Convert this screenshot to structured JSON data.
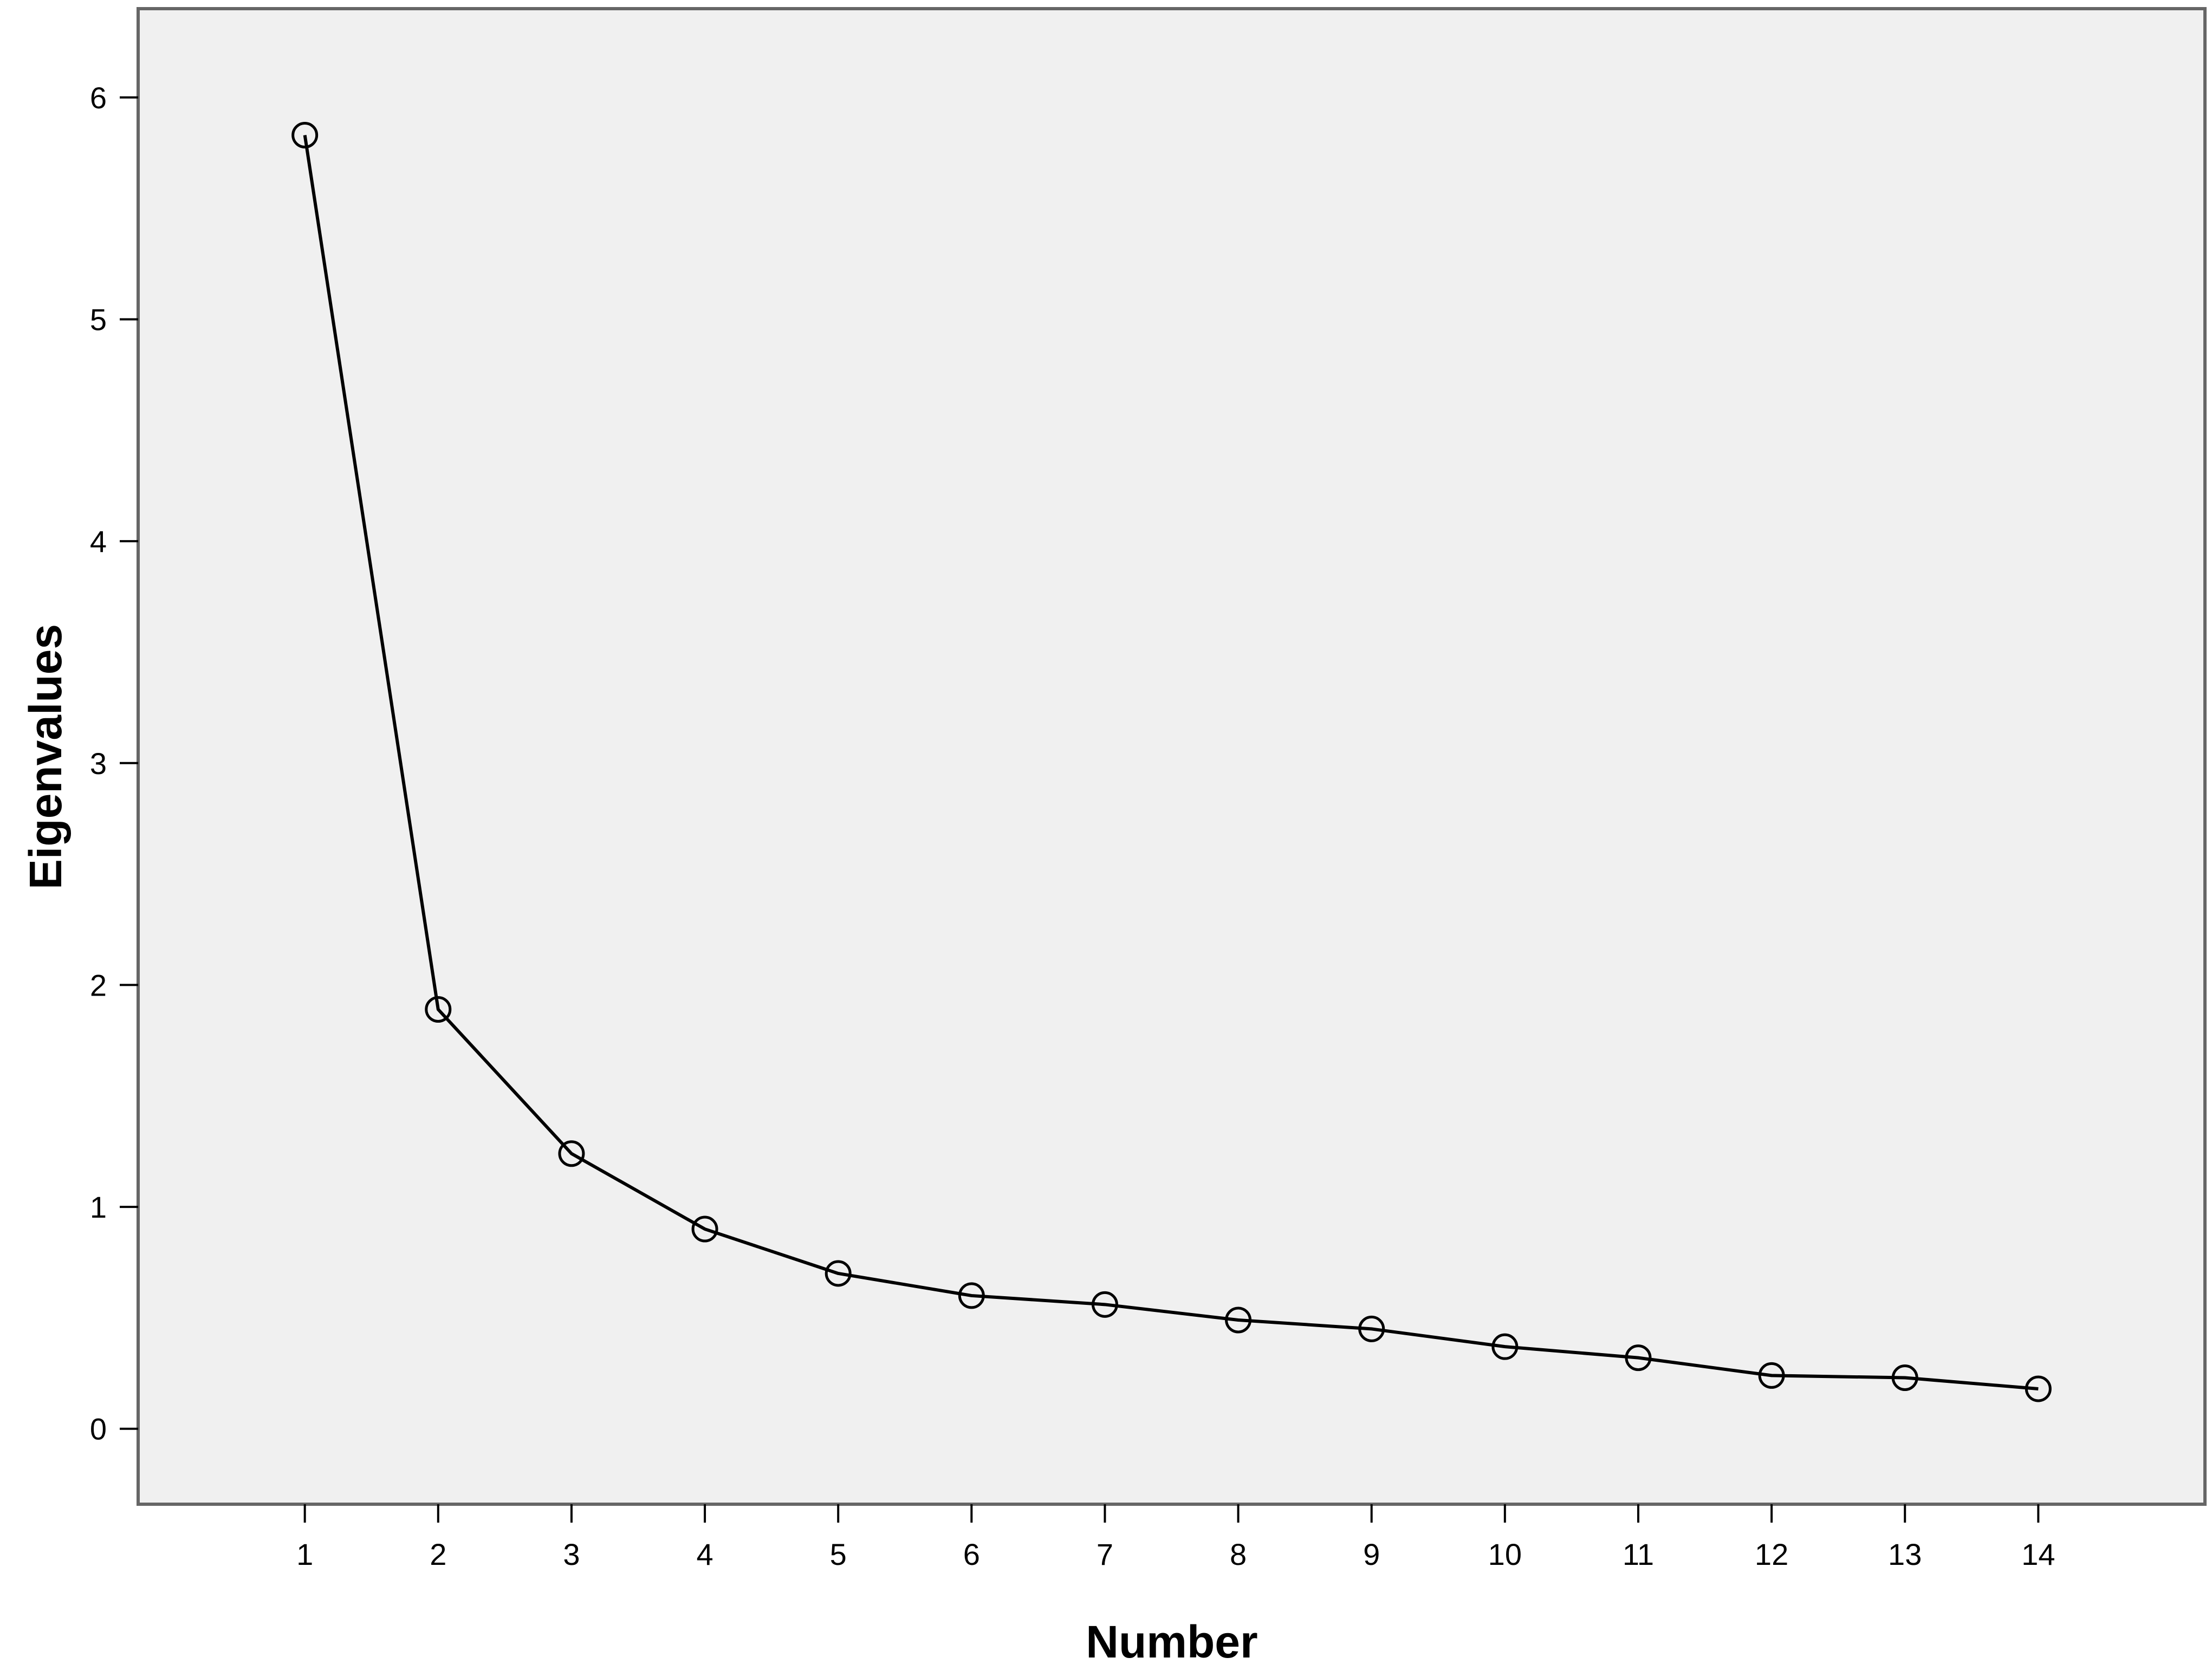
{
  "chart_data": {
    "type": "line",
    "xlabel": "Number",
    "ylabel": "Eigenvalues",
    "x": [
      1,
      2,
      3,
      4,
      5,
      6,
      7,
      8,
      9,
      10,
      11,
      12,
      13,
      14
    ],
    "series": [
      {
        "values": [
          5.83,
          1.89,
          1.24,
          0.9,
          0.7,
          0.6,
          0.56,
          0.49,
          0.45,
          0.37,
          0.32,
          0.24,
          0.23,
          0.18
        ]
      }
    ],
    "xlim": [
      -0.25,
      15.25
    ],
    "ylim": [
      -0.34,
      6.4
    ],
    "x_ticks": [
      "1",
      "2",
      "3",
      "4",
      "5",
      "6",
      "7",
      "8",
      "9",
      "10",
      "11",
      "12",
      "13",
      "14"
    ],
    "y_ticks": [
      "0",
      "1",
      "2",
      "3",
      "4",
      "5",
      "6"
    ],
    "grid": false,
    "marker": "open-circle",
    "colors": {
      "plot_background": "#f0f0f0",
      "line": "#000000",
      "frame": "#666666"
    }
  }
}
